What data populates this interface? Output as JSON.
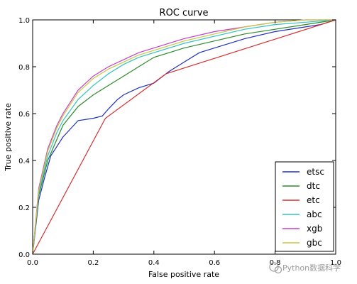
{
  "chart_data": {
    "type": "line",
    "title": "ROC curve",
    "xlabel": "False positive rate",
    "ylabel": "True positive rate",
    "xlim": [
      0.0,
      1.0
    ],
    "ylim": [
      0.0,
      1.0
    ],
    "xticks": [
      "0.0",
      "0.2",
      "0.4",
      "0.6",
      "0.8",
      "1.0"
    ],
    "yticks": [
      "0.0",
      "0.2",
      "0.4",
      "0.6",
      "0.8",
      "1.0"
    ],
    "grid": false,
    "legend_position": "bottom-right",
    "series": [
      {
        "name": "etsc",
        "color": "#1f2fbf",
        "x": [
          0.0,
          0.02,
          0.04,
          0.06,
          0.08,
          0.1,
          0.15,
          0.2,
          0.23,
          0.25,
          0.28,
          0.3,
          0.35,
          0.4,
          0.42,
          0.45,
          0.5,
          0.55,
          0.6,
          0.7,
          0.8,
          0.9,
          0.95,
          1.0
        ],
        "y": [
          0.0,
          0.23,
          0.33,
          0.42,
          0.46,
          0.5,
          0.57,
          0.58,
          0.59,
          0.62,
          0.66,
          0.68,
          0.71,
          0.73,
          0.75,
          0.78,
          0.82,
          0.86,
          0.88,
          0.92,
          0.95,
          0.97,
          0.98,
          1.0
        ]
      },
      {
        "name": "dtc",
        "color": "#2c8a2c",
        "x": [
          0.0,
          0.02,
          0.05,
          0.1,
          0.15,
          0.2,
          0.25,
          0.3,
          0.35,
          0.4,
          0.5,
          0.6,
          0.7,
          0.8,
          0.9,
          1.0
        ],
        "y": [
          0.0,
          0.25,
          0.4,
          0.55,
          0.63,
          0.68,
          0.72,
          0.76,
          0.8,
          0.84,
          0.88,
          0.91,
          0.94,
          0.96,
          0.98,
          1.0
        ]
      },
      {
        "name": "etc",
        "color": "#d42f2f",
        "x": [
          0.0,
          0.24,
          0.44,
          1.0
        ],
        "y": [
          0.0,
          0.58,
          0.77,
          1.0
        ]
      },
      {
        "name": "abc",
        "color": "#2fc2c2",
        "x": [
          0.0,
          0.02,
          0.05,
          0.08,
          0.1,
          0.15,
          0.2,
          0.25,
          0.3,
          0.35,
          0.4,
          0.5,
          0.6,
          0.7,
          0.8,
          0.9,
          1.0
        ],
        "y": [
          0.0,
          0.26,
          0.42,
          0.52,
          0.57,
          0.66,
          0.72,
          0.77,
          0.81,
          0.84,
          0.86,
          0.9,
          0.93,
          0.96,
          0.98,
          0.99,
          1.0
        ]
      },
      {
        "name": "xgb",
        "color": "#c83cc8",
        "x": [
          0.0,
          0.02,
          0.05,
          0.08,
          0.1,
          0.15,
          0.2,
          0.25,
          0.3,
          0.35,
          0.4,
          0.5,
          0.6,
          0.7,
          0.8,
          0.9,
          1.0
        ],
        "y": [
          0.0,
          0.28,
          0.45,
          0.55,
          0.6,
          0.7,
          0.76,
          0.8,
          0.83,
          0.86,
          0.88,
          0.92,
          0.95,
          0.97,
          0.99,
          1.0,
          1.0
        ]
      },
      {
        "name": "gbc",
        "color": "#c8c83c",
        "x": [
          0.0,
          0.02,
          0.05,
          0.08,
          0.1,
          0.15,
          0.2,
          0.25,
          0.3,
          0.35,
          0.4,
          0.5,
          0.6,
          0.7,
          0.8,
          0.9,
          1.0
        ],
        "y": [
          0.0,
          0.27,
          0.44,
          0.54,
          0.59,
          0.69,
          0.75,
          0.79,
          0.82,
          0.85,
          0.87,
          0.91,
          0.94,
          0.97,
          0.99,
          1.0,
          1.0
        ]
      }
    ]
  },
  "watermark": {
    "text": "Python数据科学"
  }
}
